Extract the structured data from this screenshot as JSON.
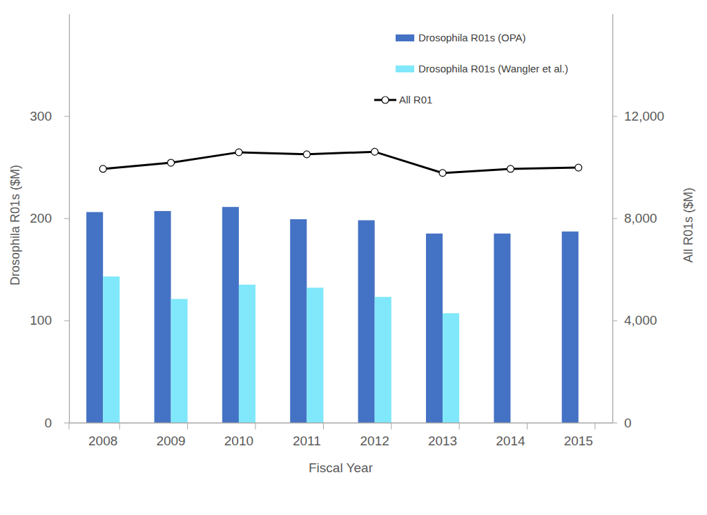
{
  "chart_data": {
    "type": "bar",
    "x_label": "Fiscal Year",
    "y_label": "Drosophila R01s ($M)",
    "y2_label": "All R01s ($M)",
    "categories": [
      "2008",
      "2009",
      "2010",
      "2011",
      "2012",
      "2013",
      "2014",
      "2015"
    ],
    "series": [
      {
        "name": "Drosophila R01s (OPA)",
        "type": "bar",
        "color": "#4472c4",
        "values": [
          206,
          207,
          211,
          199,
          198,
          185,
          185,
          187
        ]
      },
      {
        "name": "Drosophila R01s (Wangler et al.)",
        "type": "bar",
        "color": "#80e8fa",
        "values": [
          143,
          121,
          135,
          132,
          123,
          107,
          null,
          null
        ]
      },
      {
        "name": "All R01",
        "type": "line",
        "axis": "y2",
        "color": "#000000",
        "marker": "circle",
        "values": [
          9930,
          10170,
          10580,
          10500,
          10600,
          9770,
          9930,
          9980
        ]
      }
    ],
    "ylim": [
      0,
      400
    ],
    "yticks": [
      0,
      100,
      200,
      300
    ],
    "y2lim": [
      0,
      16000
    ],
    "y2ticks": [
      0,
      {
        "value": 4000,
        "label": "4,000"
      },
      {
        "value": 8000,
        "label": "8,000"
      },
      {
        "value": 12000,
        "label": "12,000"
      }
    ],
    "legend": "top-right",
    "grid": false
  }
}
